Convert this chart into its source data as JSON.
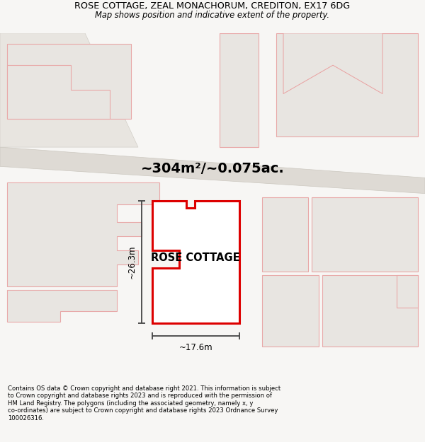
{
  "title_line1": "ROSE COTTAGE, ZEAL MONACHORUM, CREDITON, EX17 6DG",
  "title_line2": "Map shows position and indicative extent of the property.",
  "property_label": "ROSE COTTAGE",
  "area_text": "~304m²/~0.075ac.",
  "dim_vertical": "~26.3m",
  "dim_horizontal": "~17.6m",
  "footer_text": "Contains OS data © Crown copyright and database right 2021. This information is subject\nto Crown copyright and database rights 2023 and is reproduced with the permission of\nHM Land Registry. The polygons (including the associated geometry, namely x, y\nco-ordinates) are subject to Crown copyright and database rights 2023 Ordnance Survey\n100026316.",
  "page_bg": "#f7f6f4",
  "map_bg": "#f0eeeb",
  "road_fill": "#e2ddd6",
  "road_edge": "#c8c2ba",
  "plot_fill": "#e8e5e1",
  "plot_edge": "#e8a8a8",
  "prop_edge": "#dd0000",
  "prop_fill": "#ffffff",
  "dim_color": "#444444",
  "title_color": "#111111"
}
